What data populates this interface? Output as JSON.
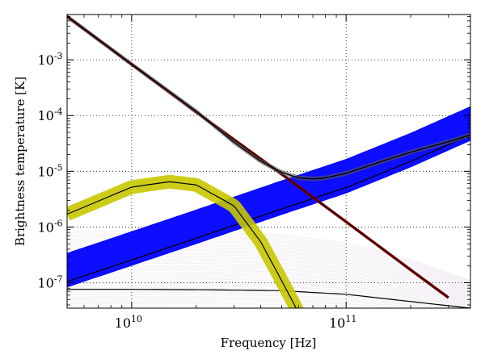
{
  "chart_data": {
    "type": "line",
    "title": "",
    "xlabel": "Frequency [Hz]",
    "ylabel": "Brightness temperature [K]",
    "xscale": "log",
    "yscale": "log",
    "xlim": [
      5000000000.0,
      380000000000.0
    ],
    "ylim": [
      3.5e-08,
      0.0065
    ],
    "grid": true,
    "legend": "none",
    "x_ticks": [
      {
        "value": 10000000000.0,
        "base": "10",
        "exp": "10"
      },
      {
        "value": 100000000000.0,
        "base": "10",
        "exp": "11"
      }
    ],
    "y_ticks": [
      {
        "value": 1e-07,
        "base": "10",
        "exp": "-7"
      },
      {
        "value": 1e-06,
        "base": "10",
        "exp": "-6"
      },
      {
        "value": 1e-05,
        "base": "10",
        "exp": "-5"
      },
      {
        "value": 0.0001,
        "base": "10",
        "exp": "-4"
      },
      {
        "value": 0.001,
        "base": "10",
        "exp": "-3"
      }
    ],
    "colors": {
      "falling_band": "#8b0000",
      "rising_band": "#0000ff",
      "peaked_band": "#c8c800",
      "faint_band": "#a070a8",
      "total_band": "#555555",
      "model_line": "#000000"
    },
    "series": [
      {
        "color": "#8b0000",
        "style": "narrow band with black center line",
        "x": [
          5000000000.0,
          10000000000.0,
          20000000000.0,
          50000000000.0,
          100000000000.0,
          200000000000.0,
          300000000000.0
        ],
        "y": [
          0.006,
          0.00083,
          0.000115,
          8.9e-06,
          1.24e-06,
          1.7e-07,
          5.4e-08
        ]
      },
      {
        "color": "#0000ff",
        "style": "wide band with black center line",
        "x": [
          5000000000.0,
          10000000000.0,
          20000000000.0,
          50000000000.0,
          100000000000.0,
          200000000000.0,
          380000000000.0
        ],
        "y": [
          1.05e-07,
          2.57e-07,
          6.3e-07,
          2.1e-06,
          5.1e-06,
          1.5e-05,
          4.5e-05
        ],
        "band_upper_factor": 3.2,
        "band_lower_factor": 1.25
      },
      {
        "color": "#c8c800",
        "style": "wide band with black center line",
        "x": [
          5000000000.0,
          10000000000.0,
          15000000000.0,
          20000000000.0,
          30000000000.0,
          40000000000.0,
          50000000000.0,
          60000000000.0
        ],
        "y": [
          1.7e-06,
          5.2e-06,
          6.5e-06,
          5.7e-06,
          2.4e-06,
          5.4e-07,
          1.1e-07,
          2.9e-08
        ]
      },
      {
        "color": "#a070a8",
        "style": "faint spread of many curves",
        "x": [
          5000000000.0,
          10000000000.0,
          20000000000.0,
          50000000000.0,
          100000000000.0,
          200000000000.0,
          380000000000.0
        ],
        "y": [
          7.6e-08,
          7.6e-08,
          7.5e-08,
          7.2e-08,
          6.2e-08,
          4.6e-08,
          3.5e-08
        ],
        "band_upper": [
          8e-07,
          8.3e-07,
          8.2e-07,
          7.2e-07,
          5.2e-07,
          2.6e-07,
          1.1e-07
        ],
        "band_lower": [
          2e-08,
          2e-08,
          2e-08,
          2e-08,
          2e-08,
          2e-08,
          2e-08
        ]
      },
      {
        "color": "#555555",
        "style": "total, gray band with black center line",
        "x": [
          5000000000.0,
          10000000000.0,
          20000000000.0,
          30000000000.0,
          40000000000.0,
          50000000000.0,
          60000000000.0,
          70000000000.0,
          80000000000.0,
          100000000000.0,
          150000000000.0,
          200000000000.0,
          300000000000.0,
          380000000000.0
        ],
        "y": [
          0.006,
          0.00083,
          0.00012,
          3.3e-05,
          1.5e-05,
          9.6e-06,
          7.6e-06,
          7.3e-06,
          7.6e-06,
          9.2e-06,
          1.55e-05,
          2.2e-05,
          3.4e-05,
          4.5e-05
        ]
      }
    ]
  }
}
